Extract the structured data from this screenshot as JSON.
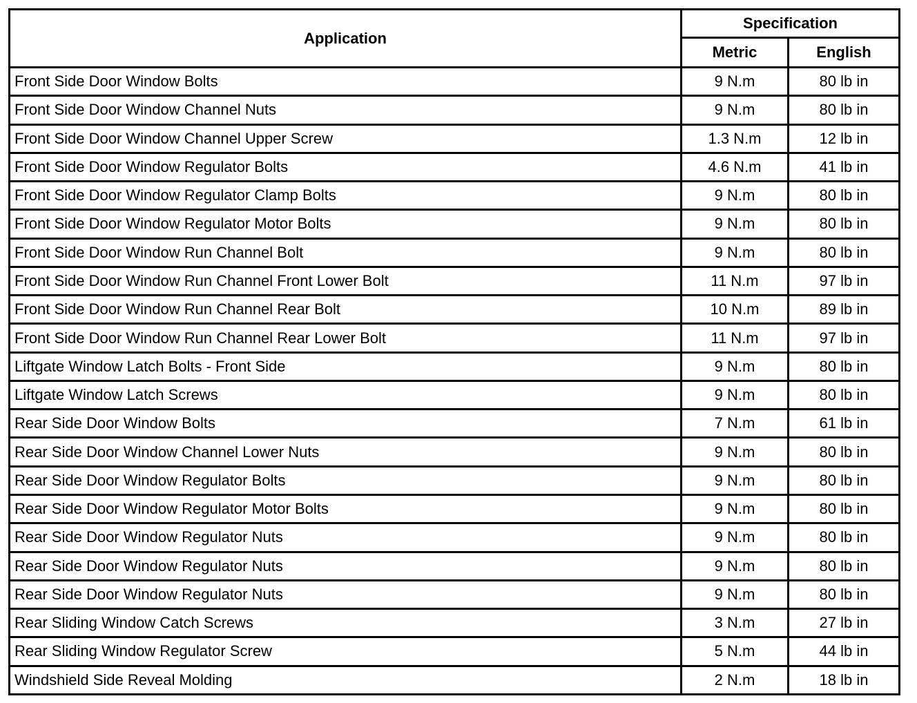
{
  "header": {
    "application": "Application",
    "specification": "Specification",
    "metric": "Metric",
    "english": "English"
  },
  "rows": [
    {
      "application": "Front Side Door Window Bolts",
      "metric": "9 N.m",
      "english": "80 lb in"
    },
    {
      "application": "Front Side Door Window Channel Nuts",
      "metric": "9 N.m",
      "english": "80 lb in"
    },
    {
      "application": "Front Side Door Window Channel Upper Screw",
      "metric": "1.3 N.m",
      "english": "12 lb in"
    },
    {
      "application": "Front Side Door Window Regulator Bolts",
      "metric": "4.6 N.m",
      "english": "41 lb in"
    },
    {
      "application": "Front Side Door Window Regulator Clamp Bolts",
      "metric": "9 N.m",
      "english": "80 lb in"
    },
    {
      "application": "Front Side Door Window Regulator Motor Bolts",
      "metric": "9 N.m",
      "english": "80 lb in"
    },
    {
      "application": "Front Side Door Window Run Channel Bolt",
      "metric": "9 N.m",
      "english": "80 lb in"
    },
    {
      "application": "Front Side Door Window Run Channel Front Lower Bolt",
      "metric": "11 N.m",
      "english": "97 lb in"
    },
    {
      "application": "Front Side Door Window Run Channel Rear Bolt",
      "metric": "10 N.m",
      "english": "89 lb in"
    },
    {
      "application": "Front Side Door Window Run Channel Rear Lower Bolt",
      "metric": "11 N.m",
      "english": "97 lb in"
    },
    {
      "application": "Liftgate Window Latch Bolts - Front Side",
      "metric": "9 N.m",
      "english": "80 lb in"
    },
    {
      "application": "Liftgate Window Latch Screws",
      "metric": "9 N.m",
      "english": "80 lb in"
    },
    {
      "application": "Rear Side Door Window Bolts",
      "metric": "7 N.m",
      "english": "61 lb in"
    },
    {
      "application": "Rear Side Door Window Channel Lower Nuts",
      "metric": "9 N.m",
      "english": "80 lb in"
    },
    {
      "application": "Rear Side Door Window Regulator Bolts",
      "metric": "9 N.m",
      "english": "80 lb in"
    },
    {
      "application": "Rear Side Door Window Regulator Motor Bolts",
      "metric": "9 N.m",
      "english": "80 lb in"
    },
    {
      "application": "Rear Side Door Window Regulator Nuts",
      "metric": "9 N.m",
      "english": "80 lb in"
    },
    {
      "application": "Rear Side Door Window Regulator Nuts",
      "metric": "9 N.m",
      "english": "80 lb in"
    },
    {
      "application": "Rear Side Door Window Regulator Nuts",
      "metric": "9 N.m",
      "english": "80 lb in"
    },
    {
      "application": "Rear Sliding Window Catch Screws",
      "metric": "3 N.m",
      "english": "27 lb in"
    },
    {
      "application": "Rear Sliding Window Regulator Screw",
      "metric": "5 N.m",
      "english": "44 lb in"
    },
    {
      "application": "Windshield Side Reveal Molding",
      "metric": "2 N.m",
      "english": "18 lb in"
    }
  ]
}
